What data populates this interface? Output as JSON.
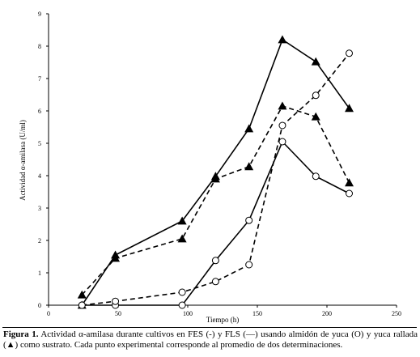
{
  "chart_data": {
    "type": "line",
    "xlabel": "Tiempo (h)",
    "ylabel": "Actividad α-amilasa (U/ml)",
    "xlim": [
      0,
      250
    ],
    "ylim": [
      0,
      9
    ],
    "xticks": [
      "0",
      "50",
      "100",
      "150",
      "200",
      "250"
    ],
    "yticks": [
      "0",
      "1",
      "2",
      "3",
      "4",
      "5",
      "6",
      "7",
      "8",
      "9"
    ],
    "grid": false,
    "legend": "none",
    "series": [
      {
        "marker": "triangle",
        "line": "solid",
        "x": [
          24,
          48,
          96,
          120,
          144,
          168,
          192,
          216
        ],
        "y": [
          0.0,
          1.55,
          2.6,
          3.98,
          5.45,
          8.2,
          7.52,
          6.08
        ]
      },
      {
        "marker": "triangle",
        "line": "dashed",
        "x": [
          24,
          48,
          96,
          120,
          144,
          168,
          192,
          216
        ],
        "y": [
          0.32,
          1.45,
          2.05,
          3.9,
          4.28,
          6.15,
          5.82,
          3.78
        ]
      },
      {
        "marker": "circle",
        "line": "solid",
        "x": [
          24,
          48,
          96,
          120,
          144,
          168,
          192,
          216
        ],
        "y": [
          0.0,
          0.0,
          0.0,
          1.38,
          2.62,
          5.05,
          3.98,
          3.45
        ]
      },
      {
        "marker": "circle",
        "line": "dashed",
        "x": [
          24,
          48,
          96,
          120,
          144,
          168,
          192,
          216
        ],
        "y": [
          0.0,
          0.12,
          0.4,
          0.73,
          1.25,
          5.55,
          6.48,
          7.78
        ]
      }
    ]
  },
  "caption": {
    "label": "Figura 1.",
    "text": "Actividad α-amilasa durante cultivos en FES (-) y FLS (—) usando almidón de yuca (O) y yuca rallada (▲) como sustrato. Cada punto experimental corresponde al promedio de dos determinaciones."
  }
}
